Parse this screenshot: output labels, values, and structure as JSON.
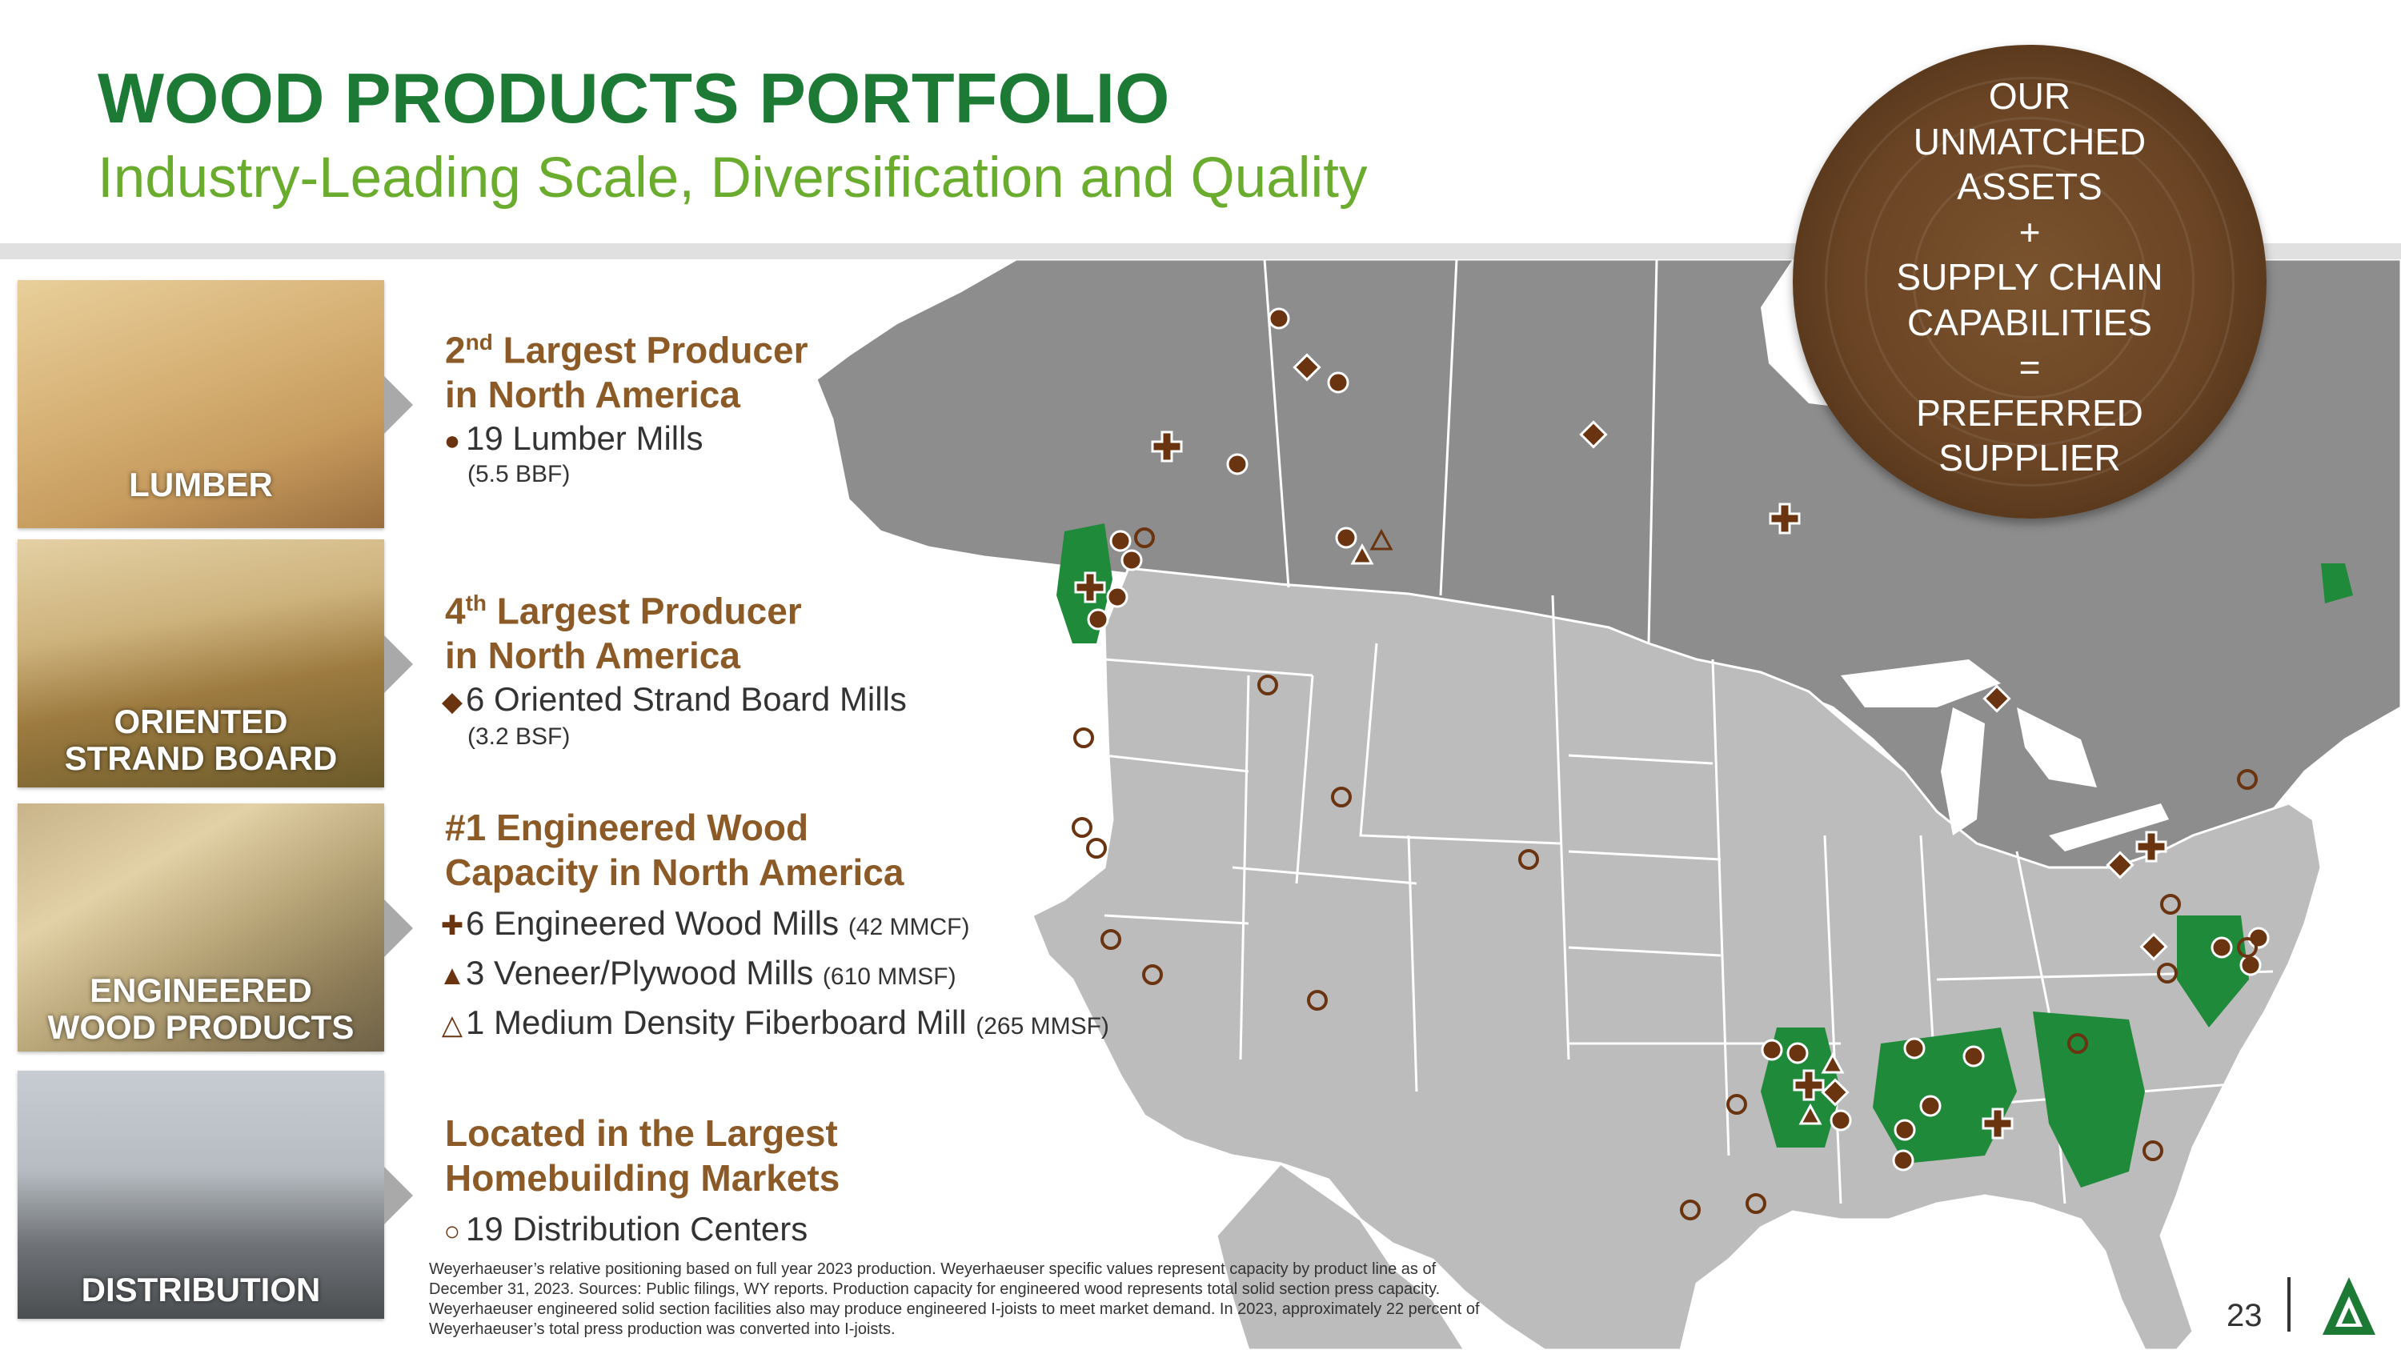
{
  "header": {
    "title": "WOOD PRODUCTS PORTFOLIO",
    "subtitle": "Industry-Leading Scale, Diversification and Quality"
  },
  "badge": {
    "lines": [
      "OUR",
      "UNMATCHED",
      "ASSETS",
      "+",
      "SUPPLY CHAIN",
      "CAPABILITIES",
      "=",
      "PREFERRED",
      "SUPPLIER"
    ]
  },
  "tiles": [
    {
      "label": "LUMBER"
    },
    {
      "label_line1": "ORIENTED",
      "label_line2": "STRAND BOARD"
    },
    {
      "label_line1": "ENGINEERED",
      "label_line2": "WOOD PRODUCTS"
    },
    {
      "label": "DISTRIBUTION"
    }
  ],
  "lumber": {
    "heading_rank": "2",
    "heading_suffix": "nd",
    "heading_rest": " Largest Producer",
    "heading_line2": "in North America",
    "symbol": "●",
    "item": "19 Lumber Mills",
    "capacity": "(5.5 BBF)"
  },
  "osb": {
    "heading_rank": "4",
    "heading_suffix": "th",
    "heading_rest": " Largest Producer",
    "heading_line2": "in North America",
    "symbol": "◆",
    "item": "6 Oriented Strand Board Mills",
    "capacity": "(3.2 BSF)"
  },
  "ewp": {
    "heading_line1": "#1 Engineered Wood",
    "heading_line2": "Capacity in North America",
    "items": [
      {
        "symbol": "✚",
        "text": "6 Engineered Wood Mills",
        "capacity": "(42 MMCF)"
      },
      {
        "symbol": "▲",
        "text": "3 Veneer/Plywood Mills",
        "capacity": "(610 MMSF)"
      },
      {
        "symbol": "△",
        "text": "1 Medium Density Fiberboard Mill",
        "capacity": "(265 MMSF)"
      }
    ]
  },
  "distribution": {
    "heading_line1": "Located in the Largest",
    "heading_line2": "Homebuilding Markets",
    "symbol": "○",
    "item": "19 Distribution Centers"
  },
  "footnote": "Weyerhaeuser’s relative positioning based on full year 2023 production. Weyerhaeuser specific values represent capacity by product line as of December 31, 2023. Sources: Public filings, WY reports. Production capacity for engineered wood represents total solid section press capacity. Weyerhaeuser engineered solid section facilities also may produce engineered I-joists to meet market demand. In 2023, approximately 22 percent of Weyerhaeuser’s total press production was converted into I-joists.",
  "page_number": "23",
  "colors": {
    "title": "#1c7a35",
    "subtitle": "#6aac2e",
    "heading": "#8b5a26",
    "marker": "#6b3410",
    "timberland": "#1e8a3a",
    "land": "#bcbcbc",
    "canada": "#8d8d8d",
    "water": "#ffffff"
  }
}
